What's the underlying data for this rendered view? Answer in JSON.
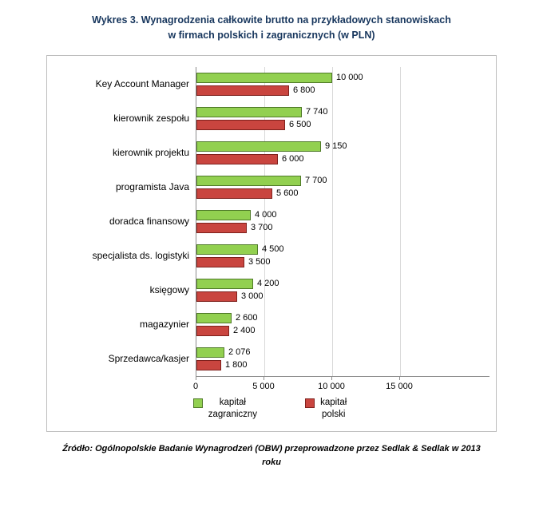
{
  "title": {
    "line1": "Wykres 3. Wynagrodzenia całkowite brutto na przykładowych stanowiskach",
    "line2": "w firmach polskich i zagranicznych (w PLN)"
  },
  "source": {
    "line1": "Źródło: Ogólnopolskie Badanie Wynagrodzeń (OBW) przeprowadzone przez Sedlak & Sedlak w 2013",
    "line2": "roku"
  },
  "chart_data": {
    "type": "bar",
    "orientation": "horizontal",
    "xlim": [
      0,
      15000
    ],
    "grid": true,
    "legend_position": "bottom",
    "axis_color": "#8c8c8c",
    "gridline_color": "#d9d9d9",
    "x_ticks": [
      {
        "value": 0,
        "label": "0"
      },
      {
        "value": 5000,
        "label": "5 000"
      },
      {
        "value": 10000,
        "label": "10 000"
      },
      {
        "value": 15000,
        "label": "15 000"
      }
    ],
    "categories": [
      "Key Account Manager",
      "kierownik zespołu",
      "kierownik projektu",
      "programista Java",
      "doradca finansowy",
      "specjalista ds. logistyki",
      "księgowy",
      "magazynier",
      "Sprzedawca/kasjer"
    ],
    "series": [
      {
        "id": "zagraniczny",
        "name": "kapitał zagraniczny",
        "name_lines": [
          "kapitał",
          "zagraniczny"
        ],
        "fill": "#92D050",
        "border": "#4F7A28",
        "values": [
          10000,
          7740,
          9150,
          7700,
          4000,
          4500,
          4200,
          2600,
          2076
        ],
        "labels": [
          "10 000",
          "7 740",
          "9 150",
          "7 700",
          "4 000",
          "4 500",
          "4 200",
          "2 600",
          "2 076"
        ]
      },
      {
        "id": "polski",
        "name": "kapitał polski",
        "name_lines": [
          "kapitał",
          "polski"
        ],
        "fill": "#C9453F",
        "border": "#7E211D",
        "values": [
          6800,
          6500,
          6000,
          5600,
          3700,
          3500,
          3000,
          2400,
          1800
        ],
        "labels": [
          "6 800",
          "6 500",
          "6 000",
          "5 600",
          "3 700",
          "3 500",
          "3 000",
          "2 400",
          "1 800"
        ]
      }
    ]
  }
}
